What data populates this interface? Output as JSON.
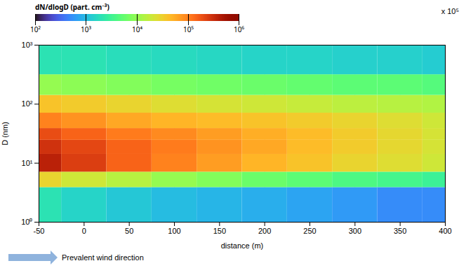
{
  "chart_data": {
    "type": "heatmap",
    "x_label": "distance (m)",
    "y_label": "D (nm)",
    "annotation": "Prevalent wind direction",
    "x": [
      -50,
      0,
      50,
      100,
      150,
      200,
      250,
      300,
      350,
      400
    ],
    "y": [
      3,
      5,
      10,
      20,
      30,
      50,
      100,
      200,
      500
    ],
    "values": [
      [
        2000,
        30000,
        400000,
        300000,
        200000,
        100000,
        40000,
        10000,
        2000
      ],
      [
        1500,
        20000,
        250000,
        220000,
        150000,
        80000,
        35000,
        9000,
        2000
      ],
      [
        1200,
        15000,
        150000,
        150000,
        110000,
        60000,
        30000,
        8000,
        1800
      ],
      [
        1000,
        10000,
        100000,
        110000,
        90000,
        50000,
        25000,
        7000,
        1700
      ],
      [
        900,
        8000,
        70000,
        80000,
        70000,
        45000,
        22000,
        6500,
        1600
      ],
      [
        800,
        6000,
        50000,
        60000,
        55000,
        40000,
        20000,
        6000,
        1500
      ],
      [
        700,
        5000,
        40000,
        45000,
        45000,
        35000,
        18000,
        5500,
        1500
      ],
      [
        600,
        4000,
        30000,
        35000,
        35000,
        30000,
        16000,
        5000,
        1400
      ],
      [
        500,
        3500,
        25000,
        28000,
        28000,
        25000,
        15000,
        5000,
        1400
      ],
      [
        500,
        3000,
        20000,
        22000,
        22000,
        20000,
        14000,
        4500,
        1300
      ]
    ],
    "xlim": [
      -50,
      400
    ],
    "xticks": [
      -50,
      0,
      50,
      100,
      150,
      200,
      250,
      300,
      350,
      400
    ],
    "ylim": [
      1,
      1000
    ],
    "yticks": [
      {
        "value": 1,
        "label": "10⁰"
      },
      {
        "value": 10,
        "label": "10¹"
      },
      {
        "value": 100,
        "label": "10²"
      },
      {
        "value": 1000,
        "label": "10³"
      }
    ],
    "log": "y",
    "grid": true,
    "colorbar": {
      "label": "dN/dlogD (part. cm⁻³)",
      "multiplier_label": "x 10⁵",
      "log": true,
      "range": [
        100,
        1000000
      ],
      "ticks": [
        {
          "value": 100,
          "label": "10²"
        },
        {
          "value": 1000,
          "label": "10³"
        },
        {
          "value": 10000,
          "label": "10⁴"
        },
        {
          "value": 100000,
          "label": "10⁵"
        },
        {
          "value": 1000000,
          "label": "10⁶"
        }
      ]
    }
  }
}
